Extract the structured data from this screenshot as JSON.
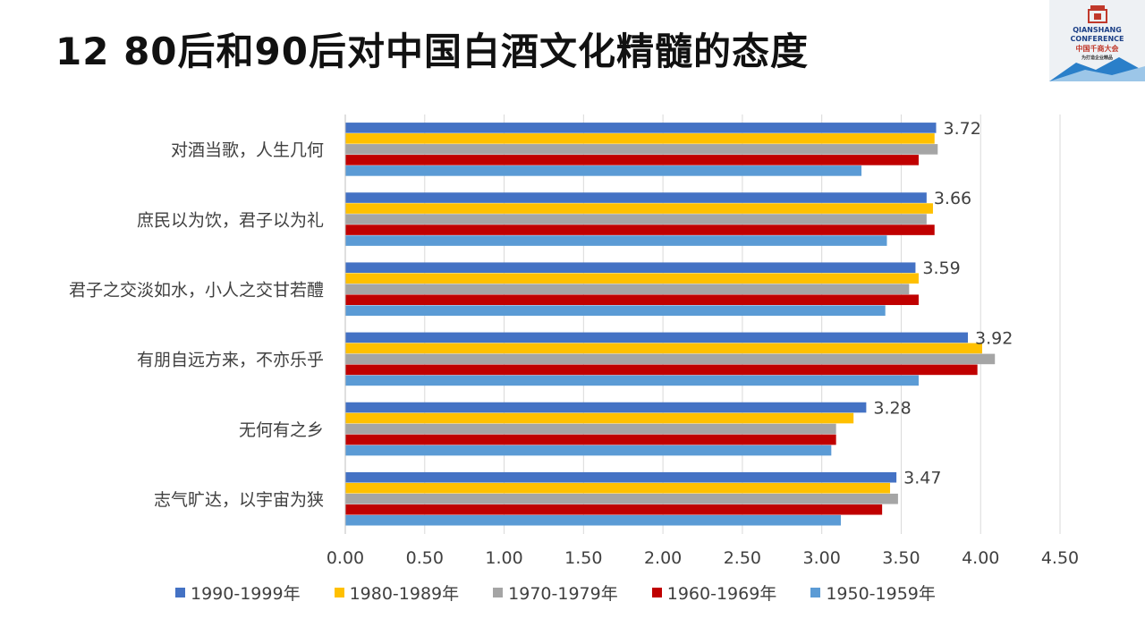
{
  "title": "12 80后和90后对中国白酒文化精髓的态度",
  "logo": {
    "line1": "QIANSHANG",
    "line2": "CONFERENCE",
    "line3": "中国千商大会",
    "line4": "为打造企业精品"
  },
  "colors": {
    "1990-1999年": "#4472c4",
    "1980-1989年": "#ffc000",
    "1970-1979年": "#a5a5a5",
    "1960-1969年": "#c00000",
    "1950-1959年": "#5b9bd5"
  },
  "chart_data": {
    "type": "bar",
    "orientation": "horizontal",
    "title": "",
    "xlim": [
      0,
      4.5
    ],
    "x_ticks": [
      "0.00",
      "0.50",
      "1.00",
      "1.50",
      "2.00",
      "2.50",
      "3.00",
      "3.50",
      "4.00",
      "4.50"
    ],
    "grid": true,
    "legend_position": "bottom",
    "categories": [
      "对酒当歌，人生几何",
      "庶民以为饮，君子以为礼",
      "君子之交淡如水，小人之交甘若醴",
      "有朋自远方来，不亦乐乎",
      "无何有之乡",
      "志气旷达，以宇宙为狭"
    ],
    "series": [
      {
        "name": "1990-1999年",
        "values": [
          3.72,
          3.66,
          3.59,
          3.92,
          3.28,
          3.47
        ]
      },
      {
        "name": "1980-1989年",
        "values": [
          3.71,
          3.7,
          3.61,
          4.01,
          3.2,
          3.43
        ]
      },
      {
        "name": "1970-1979年",
        "values": [
          3.73,
          3.66,
          3.55,
          4.09,
          3.09,
          3.48
        ]
      },
      {
        "name": "1960-1969年",
        "values": [
          3.61,
          3.71,
          3.61,
          3.98,
          3.09,
          3.38
        ]
      },
      {
        "name": "1950-1959年",
        "values": [
          3.25,
          3.41,
          3.4,
          3.61,
          3.06,
          3.12
        ]
      }
    ],
    "data_labels": [
      "3.72",
      "3.66",
      "3.59",
      "3.92",
      "3.28",
      "3.47"
    ]
  }
}
